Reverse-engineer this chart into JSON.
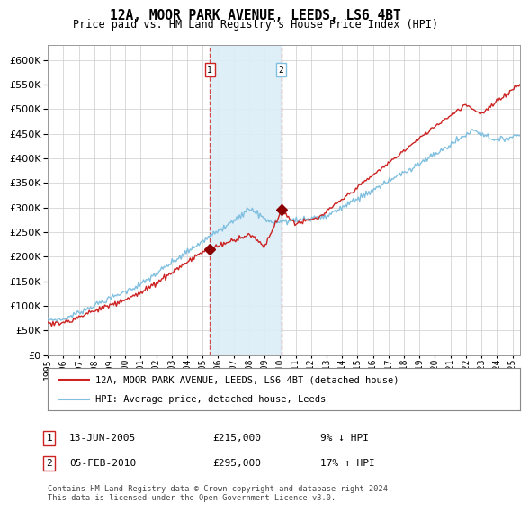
{
  "title": "12A, MOOR PARK AVENUE, LEEDS, LS6 4BT",
  "subtitle": "Price paid vs. HM Land Registry's House Price Index (HPI)",
  "legend_line1": "12A, MOOR PARK AVENUE, LEEDS, LS6 4BT (detached house)",
  "legend_line2": "HPI: Average price, detached house, Leeds",
  "annotation1_date": "13-JUN-2005",
  "annotation1_price": "£215,000",
  "annotation1_hpi": "9% ↓ HPI",
  "annotation2_date": "05-FEB-2010",
  "annotation2_price": "£295,000",
  "annotation2_hpi": "17% ↑ HPI",
  "footer": "Contains HM Land Registry data © Crown copyright and database right 2024.\nThis data is licensed under the Open Government Licence v3.0.",
  "hpi_color": "#7fbfdf",
  "price_color": "#cc2222",
  "marker_color": "#8b0000",
  "vline_color": "#cc2222",
  "shade_color": "#dceef8",
  "ylim": [
    0,
    630000
  ],
  "yticks": [
    0,
    50000,
    100000,
    150000,
    200000,
    250000,
    300000,
    350000,
    400000,
    450000,
    500000,
    550000,
    600000
  ],
  "sale1_year": 2005.46,
  "sale1_price": 215000,
  "sale2_year": 2010.08,
  "sale2_price": 295000
}
